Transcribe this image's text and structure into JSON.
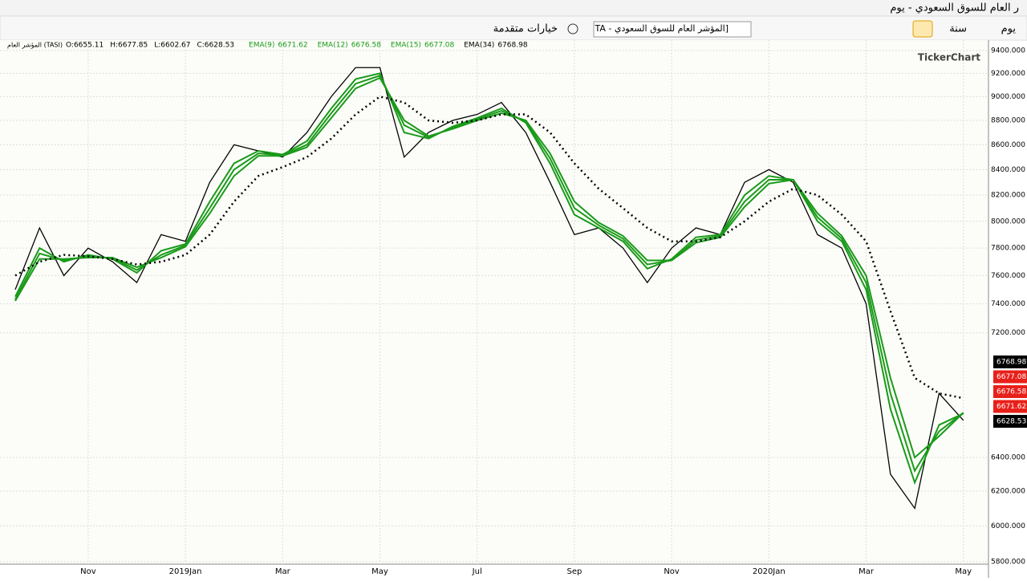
{
  "window": {
    "title": "ر العام للسوق السعودي - يوم"
  },
  "toolbar": {
    "advanced": "خيارات متقدمة",
    "search": "TA - المؤشر العام للسوق السعودي]",
    "year": "سنة",
    "day": "يوم"
  },
  "watermark": "TickerChart",
  "chart_data": {
    "type": "line",
    "log_scale": true,
    "grid": true,
    "symbol": "المؤشر العام (TASI)",
    "ohlc": [
      "O:6655.11",
      "H:6677.85",
      "L:6602.67",
      "C:6628.53"
    ],
    "categories": [
      null,
      null,
      null,
      "Nov",
      null,
      null,
      null,
      "2019Jan",
      null,
      null,
      null,
      "Mar",
      null,
      null,
      null,
      "May",
      null,
      null,
      null,
      "Jul",
      null,
      null,
      null,
      "Sep",
      null,
      null,
      null,
      "Nov",
      null,
      null,
      null,
      "2020Jan",
      null,
      null,
      null,
      "Mar",
      null,
      null,
      null,
      "May"
    ],
    "ylim": [
      5800,
      9400
    ],
    "yticks": [
      {
        "value": 5800,
        "label": "5800.000"
      },
      {
        "value": 6000,
        "label": "6000.000"
      },
      {
        "value": 6200,
        "label": "6200.000"
      },
      {
        "value": 6400,
        "label": "6400.000"
      },
      {
        "value": 7200,
        "label": "7200.000"
      },
      {
        "value": 7400,
        "label": "7400.000"
      },
      {
        "value": 7600,
        "label": "7600.000"
      },
      {
        "value": 7800,
        "label": "7800.000"
      },
      {
        "value": 8000,
        "label": "8000.000"
      },
      {
        "value": 8200,
        "label": "8200.000"
      },
      {
        "value": 8400,
        "label": "8400.000"
      },
      {
        "value": 8600,
        "label": "8600.000"
      },
      {
        "value": 8800,
        "label": "8800.000"
      },
      {
        "value": 9000,
        "label": "9000.000"
      },
      {
        "value": 9200,
        "label": "9200.000"
      },
      {
        "value": 9400,
        "label": "9400.000"
      }
    ],
    "series": [
      {
        "name": "Close",
        "color": "#000000",
        "values": [
          7500,
          7950,
          7600,
          7800,
          7700,
          7550,
          7900,
          7850,
          8300,
          8600,
          8550,
          8500,
          8700,
          9000,
          9250,
          9250,
          8500,
          8700,
          8800,
          8850,
          8950,
          8700,
          8300,
          7900,
          7950,
          7800,
          7550,
          7800,
          7950,
          7900,
          8300,
          8400,
          8300,
          7900,
          7800,
          7400,
          6300,
          6100,
          6800,
          6628.53
        ]
      },
      {
        "name": "EMA(9)",
        "color": "#1a9a1a",
        "values": [
          7450,
          7800,
          7700,
          7750,
          7720,
          7620,
          7780,
          7830,
          8150,
          8450,
          8550,
          8520,
          8630,
          8900,
          9150,
          9200,
          8700,
          8650,
          8750,
          8820,
          8900,
          8780,
          8450,
          8050,
          7950,
          7850,
          7650,
          7720,
          7880,
          7900,
          8200,
          8350,
          8320,
          8000,
          7850,
          7500,
          6700,
          6250,
          6600,
          6671.62
        ]
      },
      {
        "name": "EMA(12)",
        "color": "#1a9a1a",
        "values": [
          7430,
          7760,
          7710,
          7740,
          7725,
          7640,
          7750,
          7820,
          8100,
          8400,
          8530,
          8515,
          8600,
          8860,
          9110,
          9180,
          8760,
          8660,
          8740,
          8810,
          8880,
          8790,
          8490,
          8100,
          7970,
          7870,
          7680,
          7710,
          7860,
          7890,
          8150,
          8320,
          8320,
          8030,
          7870,
          7550,
          6800,
          6320,
          6560,
          6676.58
        ]
      },
      {
        "name": "EMA(15)",
        "color": "#1a9a1a",
        "values": [
          7420,
          7720,
          7720,
          7730,
          7730,
          7660,
          7730,
          7810,
          8060,
          8350,
          8510,
          8510,
          8580,
          8820,
          9070,
          9160,
          8800,
          8670,
          8730,
          8800,
          8860,
          8800,
          8530,
          8150,
          7990,
          7890,
          7710,
          7710,
          7840,
          7880,
          8110,
          8290,
          8320,
          8060,
          7890,
          7600,
          6900,
          6400,
          6530,
          6677.08
        ]
      },
      {
        "name": "EMA(34)",
        "color": "#000000",
        "dashed": true,
        "values": [
          7600,
          7700,
          7750,
          7740,
          7720,
          7680,
          7700,
          7750,
          7900,
          8150,
          8350,
          8420,
          8500,
          8650,
          8850,
          9000,
          8950,
          8800,
          8780,
          8800,
          8850,
          8850,
          8700,
          8450,
          8250,
          8100,
          7950,
          7850,
          7850,
          7880,
          8000,
          8150,
          8250,
          8200,
          8050,
          7850,
          7350,
          6900,
          6800,
          6768.98
        ]
      }
    ]
  }
}
